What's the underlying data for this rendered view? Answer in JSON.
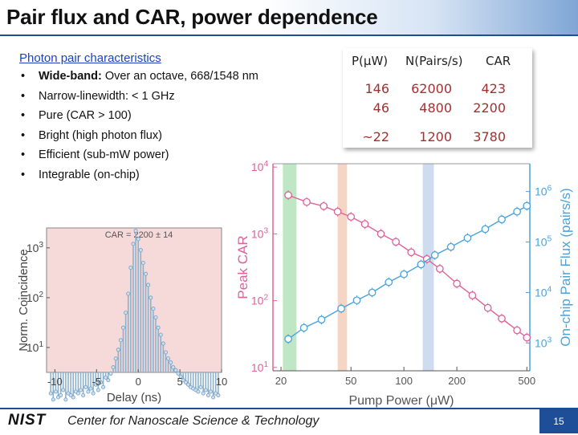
{
  "slide": {
    "title": "Pair flux and CAR, power dependence",
    "page_number": "15"
  },
  "characteristics": {
    "heading": "Photon pair characteristics",
    "bullets": [
      {
        "bold": "Wide-band:",
        "text": " Over an octave, 668/1548 nm"
      },
      {
        "bold": "",
        "text": "Narrow-linewidth: < 1 GHz"
      },
      {
        "bold": "",
        "text": "Pure (CAR > 100)"
      },
      {
        "bold": "",
        "text": "Bright (high photon flux)"
      },
      {
        "bold": "",
        "text": "Efficient (sub-mW power)"
      },
      {
        "bold": "",
        "text": "Integrable (on-chip)"
      }
    ],
    "bullet_symbol": "•"
  },
  "table": {
    "headers": [
      "P(μW)",
      "N(Pairs/s)",
      "CAR"
    ],
    "rows": [
      [
        "146",
        "62000",
        "423"
      ],
      [
        "46",
        "4800",
        "2200"
      ],
      [
        "~22",
        "1200",
        "3780"
      ]
    ]
  },
  "footer": {
    "logo": "NIST",
    "org": "Center for Nanoscale Science & Technology"
  },
  "chart_data": [
    {
      "type": "bar",
      "title": "CAR = 2200 ± 14",
      "xlabel": "Delay (ns)",
      "ylabel": "Norm. Coincidence",
      "xlim": [
        -11,
        10
      ],
      "xticks": [
        "-10",
        "-5",
        "0",
        "5",
        "10"
      ],
      "ylim_log": [
        0.5,
        3.4
      ],
      "yticks": [
        {
          "exp": 1,
          "label": "10"
        },
        {
          "exp": 2,
          "label": "10"
        },
        {
          "exp": 3,
          "label": "10"
        }
      ],
      "scale": "log",
      "background": "#f6d9d9",
      "x": [
        -10.5,
        -10.2,
        -9.9,
        -9.6,
        -9.3,
        -9.0,
        -8.7,
        -8.4,
        -8.1,
        -7.8,
        -7.5,
        -7.2,
        -6.9,
        -6.6,
        -6.3,
        -6.0,
        -5.7,
        -5.4,
        -5.1,
        -4.8,
        -4.5,
        -4.2,
        -3.9,
        -3.6,
        -3.3,
        -3.0,
        -2.7,
        -2.4,
        -2.1,
        -1.8,
        -1.5,
        -1.2,
        -0.9,
        -0.6,
        -0.3,
        0.0,
        0.3,
        0.6,
        0.9,
        1.2,
        1.5,
        1.8,
        2.1,
        2.4,
        2.7,
        3.0,
        3.3,
        3.6,
        3.9,
        4.2,
        4.5,
        4.8,
        5.1,
        5.4,
        5.7,
        6.0,
        6.3,
        6.6,
        6.9,
        7.2,
        7.5,
        7.8,
        8.1,
        8.4,
        8.7,
        9.0,
        9.3,
        9.6
      ],
      "values": [
        1.2,
        0.9,
        1.3,
        1.0,
        1.1,
        1.4,
        0.9,
        1.2,
        1.1,
        1.0,
        1.3,
        1.2,
        1.4,
        1.1,
        1.6,
        1.3,
        1.5,
        1.2,
        1.8,
        1.4,
        2.0,
        1.6,
        2.5,
        2.2,
        3.0,
        4,
        6,
        9,
        14,
        25,
        50,
        120,
        400,
        1200,
        2200,
        1500,
        900,
        500,
        300,
        180,
        100,
        60,
        40,
        25,
        18,
        12,
        8,
        6,
        5,
        4,
        3.5,
        3,
        2.6,
        2.2,
        2,
        1.8,
        1.6,
        1.5,
        1.4,
        1.3,
        1.6,
        1.2,
        1.4,
        1.1,
        1.3,
        1.0,
        1.2,
        1.1
      ]
    },
    {
      "type": "line",
      "xlabel": "Pump Power (μW)",
      "ylabel": "Peak CAR",
      "ylabel_right": "On-chip Pair Flux (pairs/s)",
      "scale_x": "log",
      "scale_y": "log",
      "xlim": [
        18,
        520
      ],
      "xticks": [
        20,
        50,
        100,
        200,
        500
      ],
      "ylim_left_exp": [
        0.95,
        4.05
      ],
      "yticks_left": [
        {
          "exp": 1,
          "label": "10"
        },
        {
          "exp": 2,
          "label": "10"
        },
        {
          "exp": 3,
          "label": "10"
        },
        {
          "exp": 4,
          "label": "10"
        }
      ],
      "ylim_right_exp": [
        2.45,
        6.55
      ],
      "yticks_right": [
        {
          "exp": 3,
          "label": "10"
        },
        {
          "exp": 4,
          "label": "10"
        },
        {
          "exp": 5,
          "label": "10"
        },
        {
          "exp": 6,
          "label": "10"
        }
      ],
      "bands": [
        {
          "from": 20.5,
          "to": 24.5,
          "color": "#bfe6c5"
        },
        {
          "from": 42,
          "to": 47.5,
          "color": "#f7d5c4"
        },
        {
          "from": 128,
          "to": 148,
          "color": "#cfdcef"
        }
      ],
      "series": [
        {
          "name": "Peak CAR",
          "axis": "left",
          "color": "#e0609a",
          "x": [
            22,
            28,
            35,
            42,
            50,
            60,
            74,
            90,
            110,
            135,
            160,
            200,
            245,
            300,
            360,
            440,
            500
          ],
          "y": [
            3800,
            3000,
            2600,
            2150,
            1800,
            1400,
            1000,
            760,
            530,
            420,
            300,
            180,
            120,
            78,
            54,
            36,
            28
          ]
        },
        {
          "name": "On-chip Pair Flux",
          "axis": "right",
          "color": "#4aa3dc",
          "x": [
            22,
            27,
            34,
            44,
            54,
            66,
            82,
            100,
            125,
            150,
            185,
            230,
            290,
            360,
            440,
            500
          ],
          "y": [
            1200,
            2000,
            2900,
            4800,
            7000,
            10000,
            16000,
            23000,
            36000,
            55000,
            80000,
            120000,
            180000,
            280000,
            400000,
            520000
          ]
        }
      ]
    }
  ]
}
